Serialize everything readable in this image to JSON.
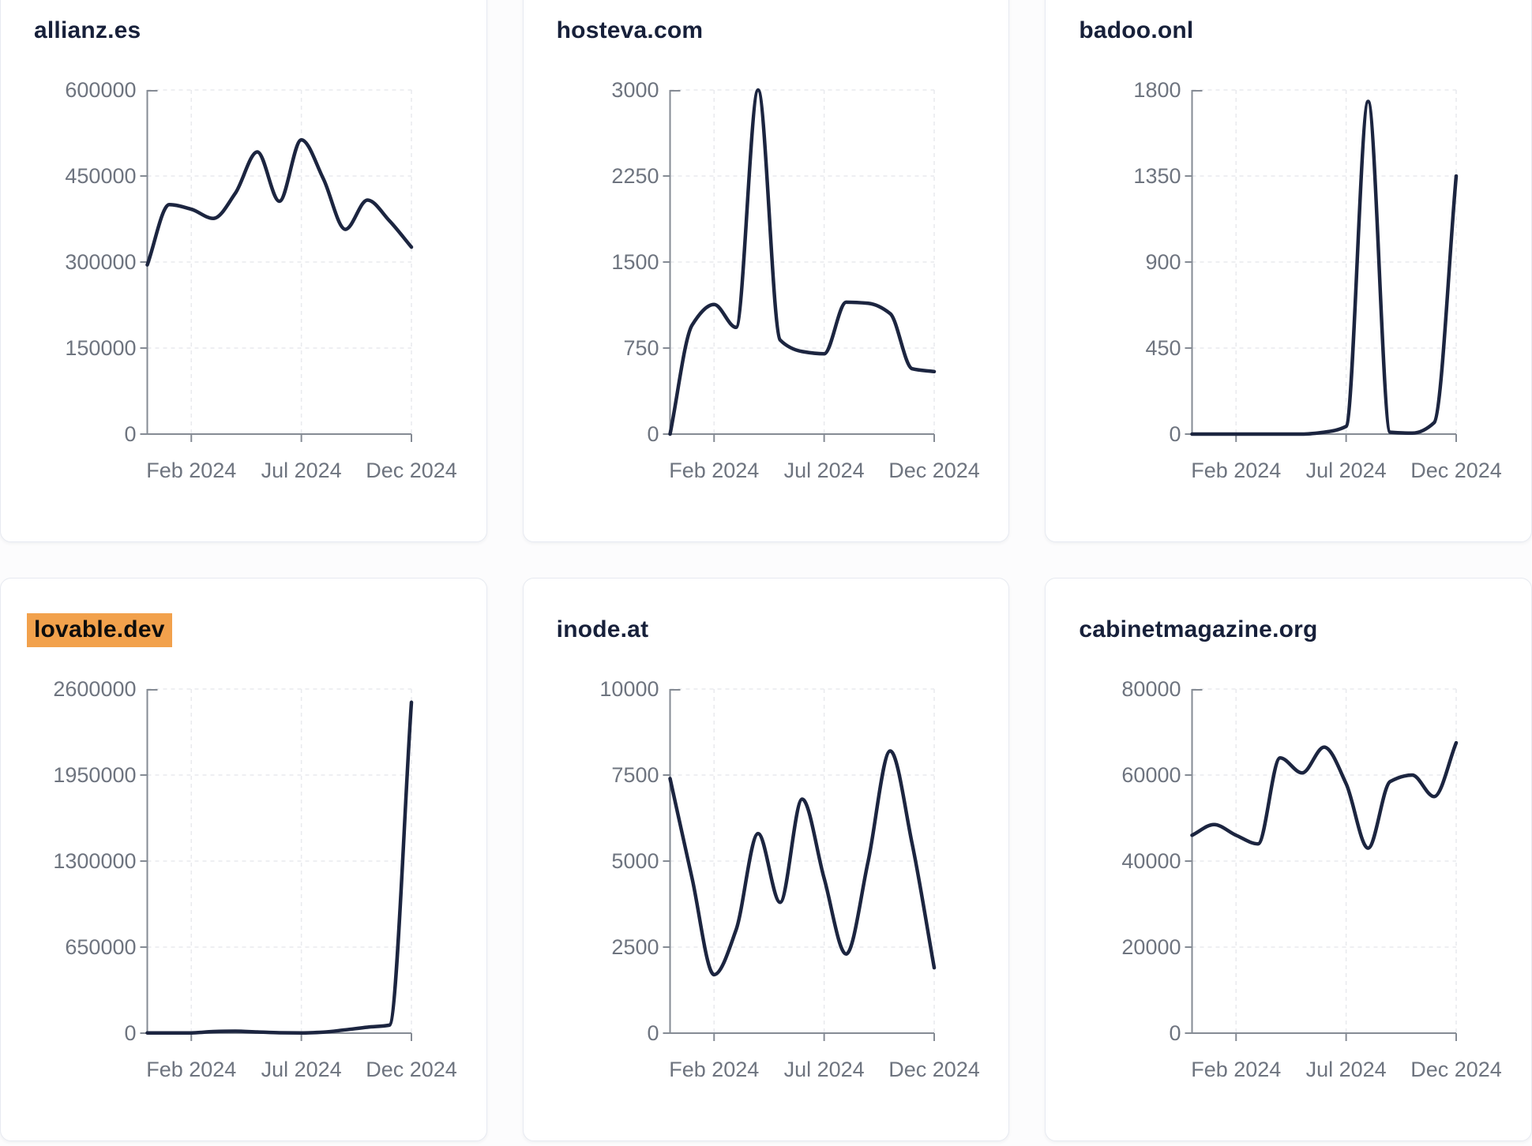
{
  "page": {
    "background": "#fcfcfd",
    "layout": "3x2-grid-of-domain-traffic-cards"
  },
  "styles": {
    "line_color": "#1c2540",
    "axis_color": "#858b94",
    "grid_color": "#e9eaee",
    "tick_text_color": "#6e747f",
    "title_color": "#17203a",
    "highlight_bg": "#f2a14c",
    "highlight_text": "#0d0d0d",
    "card_bg": "#ffffff",
    "card_border": "#e7eaf1"
  },
  "x_axis": {
    "tick_labels": [
      "Feb 2024",
      "Jul 2024",
      "Dec 2024"
    ],
    "tick_month_indices": [
      2,
      7,
      12
    ]
  },
  "chart_data": [
    {
      "type": "line",
      "title": "allianz.es",
      "highlighted": false,
      "x": [
        "Dec 2023",
        "Jan 2024",
        "Feb 2024",
        "Mar 2024",
        "Apr 2024",
        "May 2024",
        "Jun 2024",
        "Jul 2024",
        "Aug 2024",
        "Sep 2024",
        "Oct 2024",
        "Nov 2024",
        "Dec 2024"
      ],
      "values": [
        295000,
        400000,
        392000,
        376000,
        420000,
        492000,
        406000,
        513000,
        445000,
        357000,
        408000,
        372000,
        326000
      ],
      "ylim": [
        0,
        600000
      ],
      "y_ticks": [
        0,
        150000,
        300000,
        450000,
        600000
      ],
      "x_tick_labels": [
        "Feb 2024",
        "Jul 2024",
        "Dec 2024"
      ],
      "grid": true,
      "legend": false
    },
    {
      "type": "line",
      "title": "hosteva.com",
      "highlighted": false,
      "x": [
        "Dec 2023",
        "Jan 2024",
        "Feb 2024",
        "Mar 2024",
        "Apr 2024",
        "May 2024",
        "Jun 2024",
        "Jul 2024",
        "Aug 2024",
        "Sep 2024",
        "Oct 2024",
        "Nov 2024",
        "Dec 2024"
      ],
      "values": [
        0,
        950,
        1130,
        930,
        3000,
        820,
        720,
        700,
        1150,
        1140,
        1050,
        570,
        545
      ],
      "ylim": [
        0,
        3000
      ],
      "y_ticks": [
        0,
        750,
        1500,
        2250,
        3000
      ],
      "x_tick_labels": [
        "Feb 2024",
        "Jul 2024",
        "Dec 2024"
      ],
      "grid": true,
      "legend": false
    },
    {
      "type": "line",
      "title": "badoo.onl",
      "highlighted": false,
      "x": [
        "Dec 2023",
        "Jan 2024",
        "Feb 2024",
        "Mar 2024",
        "Apr 2024",
        "May 2024",
        "Jun 2024",
        "Jul 2024",
        "Aug 2024",
        "Sep 2024",
        "Oct 2024",
        "Nov 2024",
        "Dec 2024"
      ],
      "values": [
        0,
        0,
        0,
        0,
        0,
        0,
        10,
        40,
        1740,
        10,
        5,
        60,
        1350
      ],
      "ylim": [
        0,
        1800
      ],
      "y_ticks": [
        0,
        450,
        900,
        1350,
        1800
      ],
      "x_tick_labels": [
        "Feb 2024",
        "Jul 2024",
        "Dec 2024"
      ],
      "grid": true,
      "legend": false
    },
    {
      "type": "line",
      "title": "lovable.dev",
      "highlighted": true,
      "x": [
        "Dec 2023",
        "Jan 2024",
        "Feb 2024",
        "Mar 2024",
        "Apr 2024",
        "May 2024",
        "Jun 2024",
        "Jul 2024",
        "Aug 2024",
        "Sep 2024",
        "Oct 2024",
        "Nov 2024",
        "Dec 2024"
      ],
      "values": [
        2000,
        1500,
        1500,
        12000,
        15000,
        9000,
        3000,
        2000,
        8000,
        25000,
        45000,
        60000,
        2500000
      ],
      "ylim": [
        0,
        2600000
      ],
      "y_ticks": [
        0,
        650000,
        1300000,
        1950000,
        2600000
      ],
      "x_tick_labels": [
        "Feb 2024",
        "Jul 2024",
        "Dec 2024"
      ],
      "grid": true,
      "legend": false
    },
    {
      "type": "line",
      "title": "inode.at",
      "highlighted": false,
      "x": [
        "Dec 2023",
        "Jan 2024",
        "Feb 2024",
        "Mar 2024",
        "Apr 2024",
        "May 2024",
        "Jun 2024",
        "Jul 2024",
        "Aug 2024",
        "Sep 2024",
        "Oct 2024",
        "Nov 2024",
        "Dec 2024"
      ],
      "values": [
        7400,
        4500,
        1700,
        3000,
        5800,
        3800,
        6800,
        4500,
        2300,
        5000,
        8200,
        5500,
        1900
      ],
      "ylim": [
        0,
        10000
      ],
      "y_ticks": [
        0,
        2500,
        5000,
        7500,
        10000
      ],
      "x_tick_labels": [
        "Feb 2024",
        "Jul 2024",
        "Dec 2024"
      ],
      "grid": true,
      "legend": false
    },
    {
      "type": "line",
      "title": "cabinetmagazine.org",
      "highlighted": false,
      "x": [
        "Dec 2023",
        "Jan 2024",
        "Feb 2024",
        "Mar 2024",
        "Apr 2024",
        "May 2024",
        "Jun 2024",
        "Jul 2024",
        "Aug 2024",
        "Sep 2024",
        "Oct 2024",
        "Nov 2024",
        "Dec 2024"
      ],
      "values": [
        46000,
        48500,
        46000,
        44000,
        64000,
        60500,
        66500,
        58000,
        43000,
        58500,
        60000,
        55000,
        67500
      ],
      "ylim": [
        0,
        80000
      ],
      "y_ticks": [
        0,
        20000,
        40000,
        60000,
        80000
      ],
      "x_tick_labels": [
        "Feb 2024",
        "Jul 2024",
        "Dec 2024"
      ],
      "grid": true,
      "legend": false
    }
  ]
}
